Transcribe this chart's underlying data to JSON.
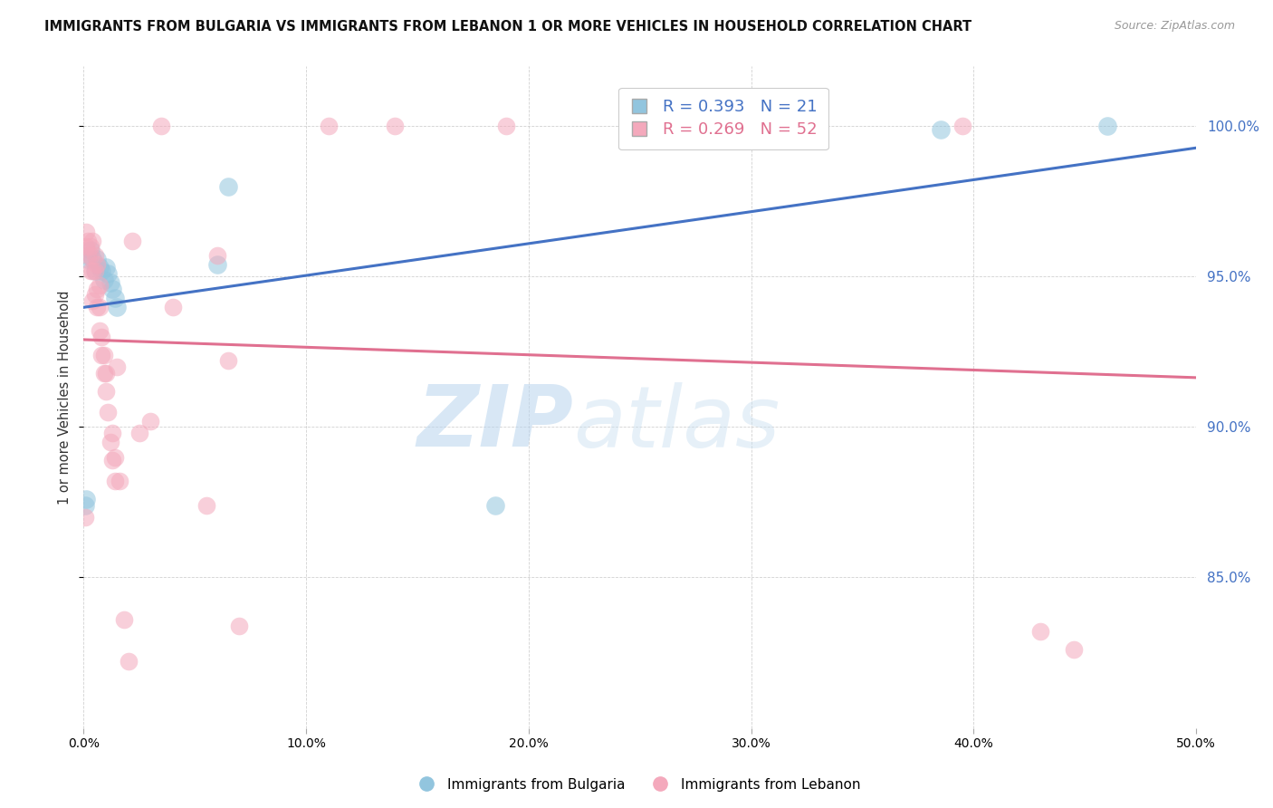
{
  "title": "IMMIGRANTS FROM BULGARIA VS IMMIGRANTS FROM LEBANON 1 OR MORE VEHICLES IN HOUSEHOLD CORRELATION CHART",
  "source": "Source: ZipAtlas.com",
  "xlabel": "",
  "ylabel": "1 or more Vehicles in Household",
  "legend_bulgaria": "Immigrants from Bulgaria",
  "legend_lebanon": "Immigrants from Lebanon",
  "R_bulgaria": 0.393,
  "N_bulgaria": 21,
  "R_lebanon": 0.269,
  "N_lebanon": 52,
  "xlim": [
    0.0,
    0.5
  ],
  "ylim": [
    0.8,
    1.02
  ],
  "yticks": [
    0.85,
    0.9,
    0.95,
    1.0
  ],
  "xticks": [
    0.0,
    0.1,
    0.2,
    0.3,
    0.4,
    0.5
  ],
  "color_bulgaria": "#92c5de",
  "color_lebanon": "#f4a9bc",
  "trendline_bulgaria": "#4472c4",
  "trendline_lebanon": "#e07090",
  "bg_color": "#ffffff",
  "watermark_zip": "ZIP",
  "watermark_atlas": "atlas",
  "bulgaria_x": [
    0.0005,
    0.001,
    0.002,
    0.003,
    0.004,
    0.005,
    0.006,
    0.007,
    0.008,
    0.009,
    0.01,
    0.011,
    0.012,
    0.013,
    0.014,
    0.015,
    0.06,
    0.065,
    0.185,
    0.385,
    0.46
  ],
  "bulgaria_y": [
    0.874,
    0.876,
    0.956,
    0.959,
    0.956,
    0.952,
    0.956,
    0.953,
    0.952,
    0.949,
    0.953,
    0.951,
    0.948,
    0.946,
    0.943,
    0.94,
    0.954,
    0.98,
    0.874,
    0.999,
    1.0
  ],
  "lebanon_x": [
    0.0005,
    0.001,
    0.001,
    0.002,
    0.002,
    0.003,
    0.003,
    0.003,
    0.004,
    0.004,
    0.004,
    0.005,
    0.005,
    0.005,
    0.006,
    0.006,
    0.006,
    0.007,
    0.007,
    0.007,
    0.008,
    0.008,
    0.009,
    0.009,
    0.01,
    0.01,
    0.011,
    0.012,
    0.013,
    0.013,
    0.014,
    0.014,
    0.015,
    0.016,
    0.018,
    0.02,
    0.022,
    0.025,
    0.03,
    0.035,
    0.04,
    0.055,
    0.06,
    0.065,
    0.07,
    0.11,
    0.14,
    0.19,
    0.32,
    0.395,
    0.43,
    0.445
  ],
  "lebanon_y": [
    0.87,
    0.96,
    0.965,
    0.957,
    0.962,
    0.952,
    0.957,
    0.96,
    0.942,
    0.952,
    0.962,
    0.944,
    0.952,
    0.957,
    0.94,
    0.946,
    0.954,
    0.932,
    0.94,
    0.947,
    0.924,
    0.93,
    0.918,
    0.924,
    0.912,
    0.918,
    0.905,
    0.895,
    0.889,
    0.898,
    0.882,
    0.89,
    0.92,
    0.882,
    0.836,
    0.822,
    0.962,
    0.898,
    0.902,
    1.0,
    0.94,
    0.874,
    0.957,
    0.922,
    0.834,
    1.0,
    1.0,
    1.0,
    1.0,
    1.0,
    0.832,
    0.826
  ]
}
